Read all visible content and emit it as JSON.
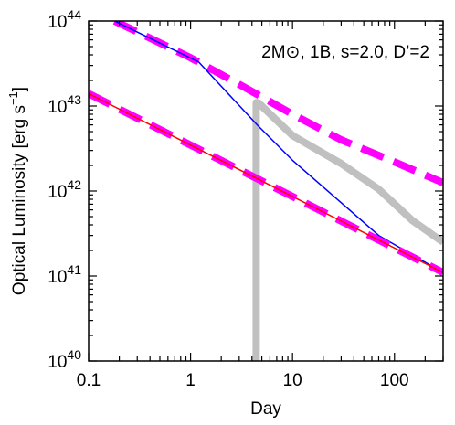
{
  "chart_data": {
    "type": "line",
    "annotation": "2M⊙, 1B, s=2.0, D’=2",
    "xlabel": "Day",
    "ylabel_main": "Optical Luminosity [erg s",
    "ylabel_sup": "−1",
    "ylabel_close": "]",
    "xscale": "log",
    "yscale": "log",
    "xlim": [
      0.1,
      300
    ],
    "ylim": [
      1e+40,
      1e+44
    ],
    "x_ticks": [
      {
        "value": 0.1,
        "label": "0.1"
      },
      {
        "value": 1,
        "label": "1"
      },
      {
        "value": 10,
        "label": "10"
      },
      {
        "value": 100,
        "label": "100"
      }
    ],
    "y_ticks": [
      {
        "value": 1e+40,
        "base": "10",
        "exp": "40"
      },
      {
        "value": 1e+41,
        "base": "10",
        "exp": "41"
      },
      {
        "value": 1e+42,
        "base": "10",
        "exp": "42"
      },
      {
        "value": 1e+43,
        "base": "10",
        "exp": "43"
      },
      {
        "value": 1e+44,
        "base": "10",
        "exp": "44"
      }
    ],
    "series": [
      {
        "key": "gray-thick",
        "color": "#c0c0c0",
        "width": 8,
        "dash": "",
        "x": [
          4.4,
          4.4,
          4.6,
          10,
          30,
          70,
          150,
          300
        ],
        "y": [
          1e+40,
          1.1e+43,
          1.1e+43,
          4.5e+42,
          2.1e+42,
          1.05e+42,
          4.5e+41,
          2.5e+41
        ]
      },
      {
        "key": "magenta-dash-upper",
        "color": "#ff00ff",
        "width": 8,
        "dash": "26,12",
        "x": [
          0.18,
          1,
          3,
          10,
          30,
          100,
          300
        ],
        "y": [
          1e+44,
          3.7e+43,
          1.8e+43,
          8e+42,
          4e+42,
          2.2e+42,
          1.25e+42
        ]
      },
      {
        "key": "blue-line",
        "color": "#0000ff",
        "width": 1.5,
        "dash": "",
        "x": [
          0.18,
          1.2,
          4.5,
          10,
          70,
          300
        ],
        "y": [
          1e+44,
          3.3e+43,
          6e+42,
          2.3e+42,
          3e+41,
          1.1e+41
        ]
      },
      {
        "key": "magenta-dash-lower",
        "color": "#ff00ff",
        "width": 8,
        "dash": "26,12",
        "x": [
          0.1,
          300
        ],
        "y": [
          1.4e+43,
          1.1e+41
        ]
      },
      {
        "key": "red-line",
        "color": "#ff0000",
        "width": 1.5,
        "dash": "",
        "x": [
          0.1,
          300
        ],
        "y": [
          1.4e+43,
          1.1e+41
        ]
      }
    ]
  }
}
